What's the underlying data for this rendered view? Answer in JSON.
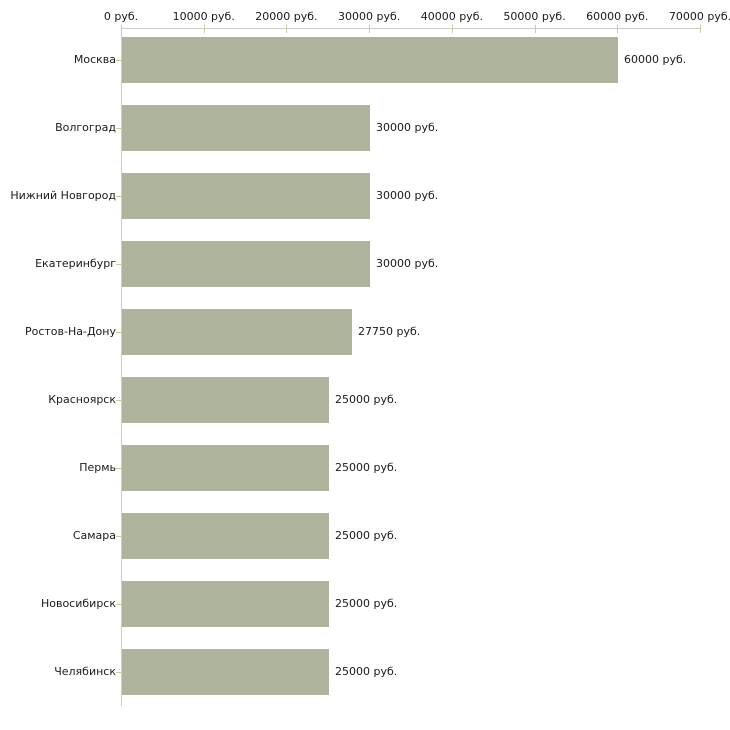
{
  "chart_data": {
    "type": "bar",
    "orientation": "horizontal",
    "title": "",
    "categories": [
      "Москва",
      "Волгоград",
      "Нижний Новгород",
      "Екатеринбург",
      "Ростов-На-Дону",
      "Красноярск",
      "Пермь",
      "Самара",
      "Новосибирск",
      "Челябинск"
    ],
    "values": [
      60000,
      30000,
      30000,
      30000,
      27750,
      25000,
      25000,
      25000,
      25000,
      25000
    ],
    "value_labels": [
      "60000 руб.",
      "30000 руб.",
      "30000 руб.",
      "30000 руб.",
      "27750 руб.",
      "25000 руб.",
      "25000 руб.",
      "25000 руб.",
      "25000 руб.",
      "25000 руб."
    ],
    "x_axis": {
      "position": "top",
      "min": 0,
      "max": 70000,
      "ticks": [
        0,
        10000,
        20000,
        30000,
        40000,
        50000,
        60000,
        70000
      ],
      "tick_labels": [
        "0 руб.",
        "10000 руб.",
        "20000 руб.",
        "30000 руб.",
        "40000 руб.",
        "50000 руб.",
        "60000 руб.",
        "70000 руб."
      ]
    },
    "grid": false,
    "legend": false,
    "colors": {
      "bar": "#aeb49c",
      "axis_line": "#cccccc",
      "tick_mark": "#c9c9a2",
      "text": "#1a1a1a",
      "background": "#ffffff"
    }
  }
}
